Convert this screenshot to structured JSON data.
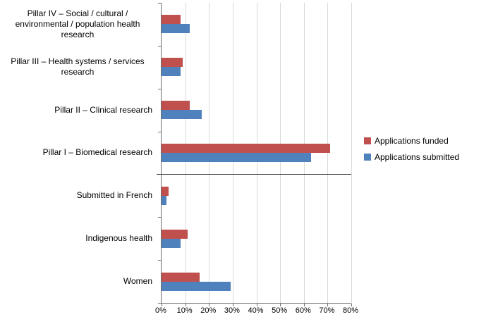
{
  "chart_data": {
    "type": "bar",
    "orientation": "horizontal",
    "title": "",
    "categories": [
      "Pillar IV – Social / cultural / environmental / population health research",
      "Pillar III – Health systems / services research",
      "Pillar II – Clinical research",
      "Pillar I – Biomedical research",
      "Submitted in French",
      "Indigenous health",
      "Women"
    ],
    "series": [
      {
        "name": "Applications funded",
        "color": "#C0504D",
        "values": [
          8,
          9,
          12,
          71,
          3,
          11,
          16
        ]
      },
      {
        "name": "Applications submitted",
        "color": "#4F81BD",
        "values": [
          12,
          8,
          17,
          63,
          2,
          8,
          29
        ]
      }
    ],
    "xlim": [
      0,
      80
    ],
    "x_ticks": [
      "0%",
      "10%",
      "20%",
      "30%",
      "40%",
      "50%",
      "60%",
      "70%",
      "80%"
    ],
    "grid": true,
    "legend_position": "right",
    "separator_after_category_index": 3,
    "colors": {
      "gridline": "#d9d9d9",
      "axis": "#6e6e6e",
      "separator": "#3c3c3c"
    }
  }
}
